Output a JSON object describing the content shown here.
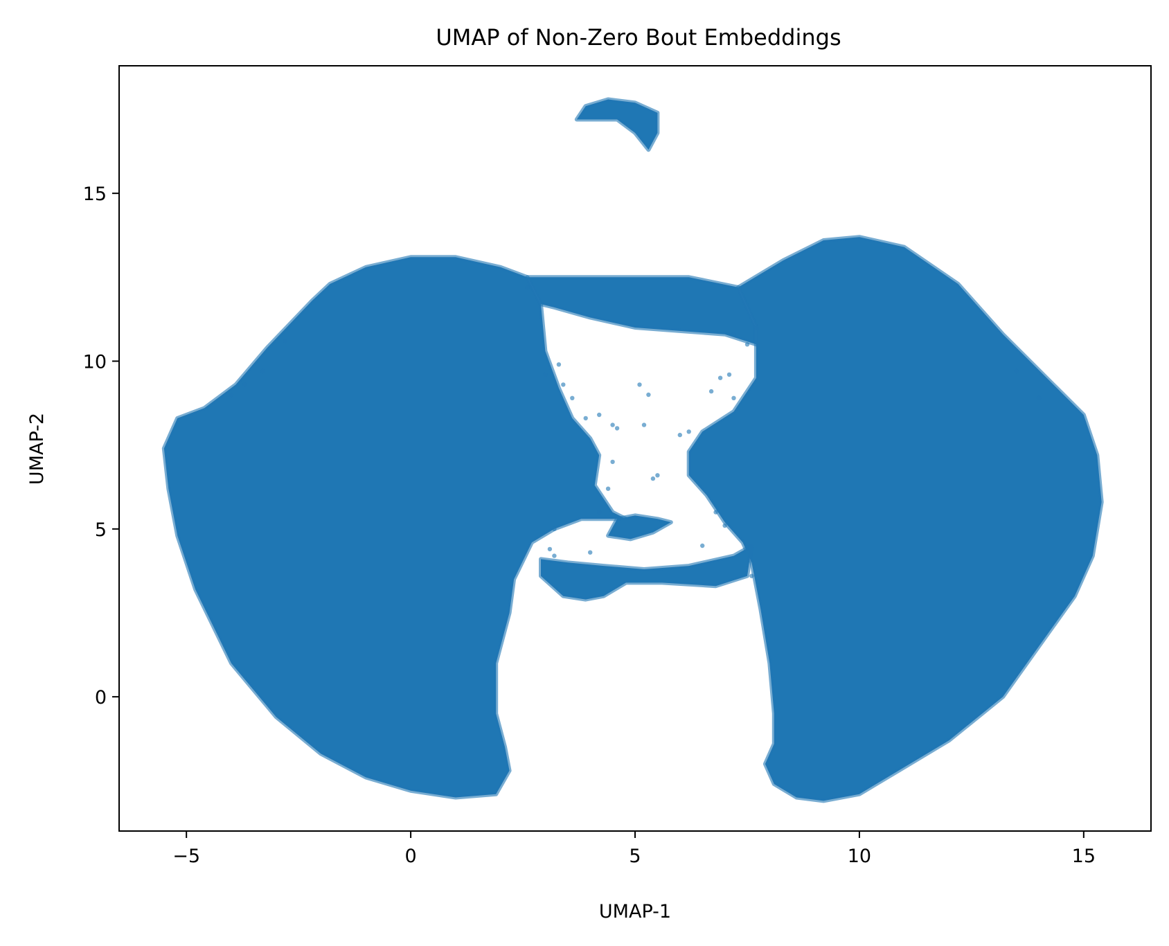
{
  "chart_data": {
    "type": "scatter",
    "title": "UMAP of Non-Zero Bout Embeddings",
    "xlabel": "UMAP-1",
    "ylabel": "UMAP-2",
    "xlim": [
      -6.5,
      16.5
    ],
    "ylim": [
      -4.0,
      18.8
    ],
    "xticks": [
      -5,
      0,
      5,
      10,
      15
    ],
    "yticks": [
      0,
      5,
      10,
      15
    ],
    "xtick_labels": [
      "−5",
      "0",
      "5",
      "10",
      "15"
    ],
    "ytick_labels": [
      "0",
      "5",
      "10",
      "15"
    ],
    "grid": false,
    "legend": "none",
    "marker_color": "#1f77b4",
    "marker_alpha": 0.6,
    "series": [
      {
        "regions": [
          {
            "region": "left-lobe",
            "outline": [
              [
                -5.5,
                7.4
              ],
              [
                -5.2,
                8.3
              ],
              [
                -4.6,
                8.6
              ],
              [
                -3.9,
                9.3
              ],
              [
                -3.2,
                10.4
              ],
              [
                -2.2,
                11.8
              ],
              [
                -1.8,
                12.3
              ],
              [
                -1.0,
                12.8
              ],
              [
                0.0,
                13.1
              ],
              [
                1.0,
                13.1
              ],
              [
                2.0,
                12.8
              ],
              [
                2.6,
                12.5
              ],
              [
                2.9,
                11.7
              ],
              [
                3.0,
                10.3
              ],
              [
                3.3,
                9.2
              ],
              [
                3.6,
                8.3
              ],
              [
                4.0,
                7.7
              ],
              [
                4.2,
                7.2
              ],
              [
                4.1,
                6.3
              ],
              [
                4.5,
                5.5
              ],
              [
                4.8,
                5.3
              ],
              [
                3.8,
                5.3
              ],
              [
                3.2,
                5.0
              ],
              [
                2.7,
                4.6
              ],
              [
                2.3,
                3.5
              ],
              [
                2.2,
                2.5
              ],
              [
                1.9,
                1.0
              ],
              [
                1.9,
                -0.5
              ],
              [
                2.1,
                -1.5
              ],
              [
                2.2,
                -2.2
              ],
              [
                1.9,
                -2.9
              ],
              [
                1.0,
                -3.0
              ],
              [
                0.0,
                -2.8
              ],
              [
                -1.0,
                -2.4
              ],
              [
                -2.0,
                -1.7
              ],
              [
                -3.0,
                -0.6
              ],
              [
                -4.0,
                1.0
              ],
              [
                -4.8,
                3.2
              ],
              [
                -5.2,
                4.8
              ],
              [
                -5.4,
                6.2
              ]
            ]
          },
          {
            "region": "right-lobe",
            "outline": [
              [
                7.3,
                12.2
              ],
              [
                8.3,
                13.0
              ],
              [
                9.2,
                13.6
              ],
              [
                10.0,
                13.7
              ],
              [
                11.0,
                13.4
              ],
              [
                12.2,
                12.3
              ],
              [
                13.2,
                10.8
              ],
              [
                14.4,
                9.2
              ],
              [
                15.0,
                8.4
              ],
              [
                15.3,
                7.2
              ],
              [
                15.4,
                5.8
              ],
              [
                15.2,
                4.2
              ],
              [
                14.8,
                3.0
              ],
              [
                14.0,
                1.5
              ],
              [
                13.2,
                0.0
              ],
              [
                12.0,
                -1.3
              ],
              [
                11.0,
                -2.1
              ],
              [
                10.0,
                -2.9
              ],
              [
                9.2,
                -3.1
              ],
              [
                8.6,
                -3.0
              ],
              [
                8.1,
                -2.6
              ],
              [
                7.9,
                -2.0
              ],
              [
                8.1,
                -1.4
              ],
              [
                8.1,
                -0.5
              ],
              [
                8.0,
                1.0
              ],
              [
                7.8,
                2.6
              ],
              [
                7.6,
                4.0
              ],
              [
                7.4,
                4.6
              ],
              [
                7.0,
                5.2
              ],
              [
                6.6,
                6.0
              ],
              [
                6.2,
                6.6
              ],
              [
                6.2,
                7.3
              ],
              [
                6.5,
                7.9
              ],
              [
                7.2,
                8.5
              ],
              [
                7.7,
                9.5
              ],
              [
                7.7,
                11.0
              ]
            ]
          },
          {
            "region": "upper-bridge",
            "outline": [
              [
                2.6,
                12.5
              ],
              [
                4.0,
                12.5
              ],
              [
                5.2,
                12.5
              ],
              [
                6.2,
                12.5
              ],
              [
                7.3,
                12.2
              ],
              [
                7.7,
                11.0
              ],
              [
                7.7,
                10.5
              ],
              [
                7.0,
                10.8
              ],
              [
                6.0,
                10.9
              ],
              [
                5.0,
                11.0
              ],
              [
                4.0,
                11.3
              ],
              [
                3.2,
                11.6
              ],
              [
                2.9,
                11.7
              ]
            ]
          },
          {
            "region": "lower-bridge",
            "outline": [
              [
                2.9,
                4.1
              ],
              [
                3.5,
                4.0
              ],
              [
                4.3,
                3.9
              ],
              [
                5.2,
                3.8
              ],
              [
                6.2,
                3.9
              ],
              [
                7.2,
                4.2
              ],
              [
                7.6,
                4.5
              ],
              [
                7.5,
                3.6
              ],
              [
                6.8,
                3.3
              ],
              [
                5.6,
                3.4
              ],
              [
                4.8,
                3.4
              ],
              [
                4.3,
                3.0
              ],
              [
                3.9,
                2.9
              ],
              [
                3.4,
                3.0
              ],
              [
                2.9,
                3.6
              ]
            ]
          },
          {
            "region": "top-crescent",
            "outline": [
              [
                3.7,
                17.2
              ],
              [
                3.9,
                17.6
              ],
              [
                4.4,
                17.8
              ],
              [
                5.0,
                17.7
              ],
              [
                5.5,
                17.4
              ],
              [
                5.5,
                16.8
              ],
              [
                5.3,
                16.3
              ],
              [
                5.0,
                16.8
              ],
              [
                4.6,
                17.2
              ],
              [
                4.1,
                17.2
              ]
            ]
          },
          {
            "region": "center-strand",
            "outline": [
              [
                4.6,
                5.3
              ],
              [
                5.0,
                5.4
              ],
              [
                5.5,
                5.3
              ],
              [
                5.8,
                5.2
              ],
              [
                5.4,
                4.9
              ],
              [
                4.9,
                4.7
              ],
              [
                4.4,
                4.8
              ]
            ]
          }
        ],
        "scattered_points": [
          [
            3.0,
            9.6
          ],
          [
            3.3,
            9.9
          ],
          [
            3.4,
            9.3
          ],
          [
            3.6,
            8.9
          ],
          [
            3.9,
            8.3
          ],
          [
            4.2,
            8.4
          ],
          [
            4.5,
            8.1
          ],
          [
            4.6,
            8.0
          ],
          [
            5.1,
            9.3
          ],
          [
            5.3,
            9.0
          ],
          [
            5.2,
            8.1
          ],
          [
            5.5,
            6.6
          ],
          [
            5.4,
            6.5
          ],
          [
            6.0,
            7.8
          ],
          [
            6.2,
            7.9
          ],
          [
            6.7,
            9.1
          ],
          [
            6.9,
            9.5
          ],
          [
            7.1,
            9.6
          ],
          [
            7.2,
            8.9
          ],
          [
            4.5,
            7.0
          ],
          [
            4.4,
            6.2
          ],
          [
            4.2,
            5.5
          ],
          [
            3.2,
            5.0
          ],
          [
            6.8,
            5.5
          ],
          [
            7.0,
            5.1
          ],
          [
            3.1,
            4.4
          ],
          [
            3.2,
            4.2
          ],
          [
            4.0,
            4.3
          ],
          [
            6.5,
            4.5
          ],
          [
            7.6,
            3.6
          ],
          [
            2.6,
            12.2
          ],
          [
            7.7,
            11.0
          ],
          [
            7.5,
            10.5
          ],
          [
            7.2,
            10.8
          ],
          [
            -3.7,
            9.3
          ],
          [
            -3.3,
            9.7
          ],
          [
            -4.0,
            9.0
          ],
          [
            -2.8,
            10.6
          ],
          [
            14.0,
            8.9
          ],
          [
            13.5,
            9.7
          ]
        ]
      }
    ]
  }
}
